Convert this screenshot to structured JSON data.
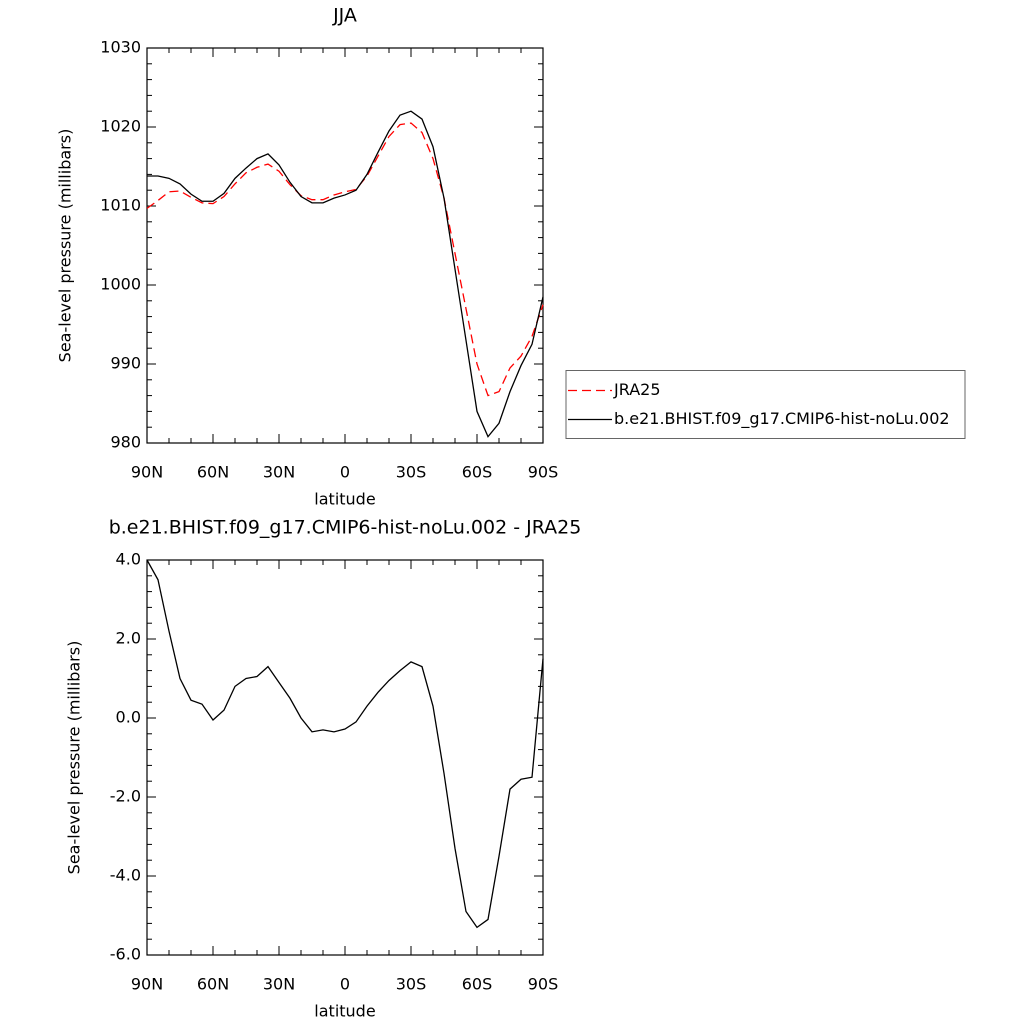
{
  "chart_data": [
    {
      "type": "line",
      "title": "JJA",
      "x_label": "latitude",
      "y_label": "Sea-level pressure (millibars)",
      "x": [
        90,
        85,
        80,
        75,
        70,
        65,
        60,
        55,
        50,
        45,
        40,
        35,
        30,
        25,
        20,
        15,
        10,
        5,
        0,
        -5,
        -10,
        -15,
        -20,
        -25,
        -30,
        -35,
        -40,
        -45,
        -50,
        -55,
        -60,
        -65,
        -70,
        -75,
        -80,
        -85,
        -90
      ],
      "series": [
        {
          "name": "JRA25",
          "color": "#ff0000",
          "dashed": true,
          "values": [
            1009.7,
            1010.7,
            1011.8,
            1011.9,
            1011.1,
            1010.4,
            1010.3,
            1011.2,
            1012.8,
            1014.2,
            1014.9,
            1015.3,
            1014.4,
            1012.7,
            1011.3,
            1010.8,
            1010.8,
            1011.4,
            1011.8,
            1012.1,
            1013.8,
            1016.3,
            1018.8,
            1020.3,
            1020.5,
            1019.3,
            1016,
            1011,
            1004,
            997,
            990,
            986,
            986.5,
            989.5,
            991,
            993.5,
            997.5
          ]
        },
        {
          "name": "b.e21.BHIST.f09_g17.CMIP6-hist-noLu.002",
          "color": "#000000",
          "dashed": false,
          "values": [
            1013.8,
            1013.8,
            1013.5,
            1012.8,
            1011.5,
            1010.6,
            1010.6,
            1011.6,
            1013.5,
            1014.8,
            1016,
            1016.6,
            1015.2,
            1013,
            1011.2,
            1010.4,
            1010.4,
            1011,
            1011.4,
            1012,
            1014,
            1016.8,
            1019.5,
            1021.5,
            1022,
            1021,
            1017.5,
            1011,
            1002,
            993,
            984,
            980.8,
            982.5,
            986.5,
            989.8,
            992.5,
            998.5
          ]
        }
      ],
      "xlim": [
        90,
        -90
      ],
      "xticks": [
        {
          "value": 90,
          "label": "90N"
        },
        {
          "value": 60,
          "label": "60N"
        },
        {
          "value": 30,
          "label": "30N"
        },
        0,
        {
          "value": -30,
          "label": "30S"
        },
        {
          "value": -60,
          "label": "60S"
        },
        {
          "value": -90,
          "label": "90S"
        }
      ],
      "ylim": [
        980,
        1030
      ],
      "yticks": [
        980,
        990,
        1000,
        1010,
        1020,
        1030
      ],
      "legend": "right"
    },
    {
      "type": "line",
      "title": "b.e21.BHIST.f09_g17.CMIP6-hist-noLu.002 - JRA25",
      "x_label": "latitude",
      "y_label": "Sea-level pressure (millibars)",
      "x": [
        90,
        85,
        80,
        75,
        70,
        65,
        60,
        55,
        50,
        45,
        40,
        35,
        30,
        25,
        20,
        15,
        10,
        5,
        0,
        -5,
        -10,
        -15,
        -20,
        -25,
        -30,
        -35,
        -40,
        -45,
        -50,
        -55,
        -60,
        -65,
        -70,
        -75,
        -80,
        -85,
        -90
      ],
      "color": "#000000",
      "values": [
        4.0,
        3.5,
        2.2,
        1.0,
        0.45,
        0.35,
        -0.05,
        0.2,
        0.8,
        1.0,
        1.05,
        1.3,
        0.9,
        0.5,
        0.0,
        -0.35,
        -0.3,
        -0.35,
        -0.28,
        -0.1,
        0.3,
        0.65,
        0.95,
        1.2,
        1.42,
        1.3,
        0.3,
        -1.4,
        -3.3,
        -4.9,
        -5.3,
        -5.1,
        -3.5,
        -1.8,
        -1.55,
        -1.5,
        1.5
      ],
      "xlim": [
        90,
        -90
      ],
      "xticks": [
        {
          "value": 90,
          "label": "90N"
        },
        {
          "value": 60,
          "label": "60N"
        },
        {
          "value": 30,
          "label": "30N"
        },
        0,
        {
          "value": -30,
          "label": "30S"
        },
        {
          "value": -60,
          "label": "60S"
        },
        {
          "value": -90,
          "label": "90S"
        }
      ],
      "ylim": [
        -6,
        4
      ],
      "yticks": [
        {
          "value": -6,
          "label": "-6.0"
        },
        {
          "value": -4,
          "label": "-4.0"
        },
        {
          "value": -2,
          "label": "-2.0"
        },
        {
          "value": 0,
          "label": "0.0"
        },
        {
          "value": 2,
          "label": "2.0"
        },
        {
          "value": 4,
          "label": "4.0"
        }
      ]
    }
  ]
}
